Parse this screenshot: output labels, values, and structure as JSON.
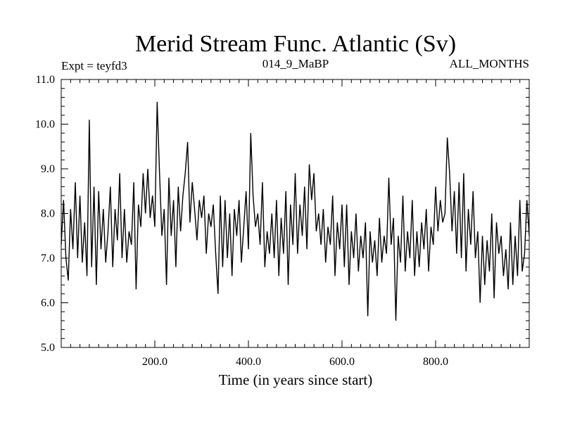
{
  "chart_data": {
    "type": "line",
    "title": "Merid Stream Func. Atlantic (Sv)",
    "subtitle_left": "Expt = teyfd3",
    "subtitle_center": "014_9_MaBP",
    "subtitle_right": "ALL_MONTHS",
    "xlabel": "Time (in years since start)",
    "ylabel": "",
    "xlim": [
      0,
      1000
    ],
    "ylim": [
      5.0,
      11.0
    ],
    "x_ticks": [
      200,
      400,
      600,
      800
    ],
    "x_tick_labels": [
      "200.0",
      "400.0",
      "600.0",
      "800.0"
    ],
    "y_ticks": [
      5,
      6,
      7,
      8,
      9,
      10,
      11
    ],
    "y_tick_labels": [
      "5.0",
      "6.0",
      "7.0",
      "8.0",
      "9.0",
      "10.0",
      "11.0"
    ],
    "grid": false,
    "series": [
      {
        "name": "Merid Stream Func. Atlantic",
        "x": [
          0,
          5,
          10,
          15,
          20,
          25,
          30,
          35,
          40,
          45,
          50,
          55,
          60,
          65,
          70,
          75,
          80,
          85,
          90,
          95,
          100,
          105,
          110,
          115,
          120,
          125,
          130,
          135,
          140,
          145,
          150,
          155,
          160,
          165,
          170,
          175,
          180,
          185,
          190,
          195,
          200,
          205,
          210,
          215,
          220,
          225,
          230,
          235,
          240,
          245,
          250,
          255,
          260,
          265,
          270,
          275,
          280,
          285,
          290,
          295,
          300,
          305,
          310,
          315,
          320,
          325,
          330,
          335,
          340,
          345,
          350,
          355,
          360,
          365,
          370,
          375,
          380,
          385,
          390,
          395,
          400,
          405,
          410,
          415,
          420,
          425,
          430,
          435,
          440,
          445,
          450,
          455,
          460,
          465,
          470,
          475,
          480,
          485,
          490,
          495,
          500,
          505,
          510,
          515,
          520,
          525,
          530,
          535,
          540,
          545,
          550,
          555,
          560,
          565,
          570,
          575,
          580,
          585,
          590,
          595,
          600,
          605,
          610,
          615,
          620,
          625,
          630,
          635,
          640,
          645,
          650,
          655,
          660,
          665,
          670,
          675,
          680,
          685,
          690,
          695,
          700,
          705,
          710,
          715,
          720,
          725,
          730,
          735,
          740,
          745,
          750,
          755,
          760,
          765,
          770,
          775,
          780,
          785,
          790,
          795,
          800,
          805,
          810,
          815,
          820,
          825,
          830,
          835,
          840,
          845,
          850,
          855,
          860,
          865,
          870,
          875,
          880,
          885,
          890,
          895,
          900,
          905,
          910,
          915,
          920,
          925,
          930,
          935,
          940,
          945,
          950,
          955,
          960,
          965,
          970,
          975,
          980,
          985,
          990,
          995,
          1000
        ],
        "values": [
          7.3,
          8.3,
          7.0,
          6.5,
          8.1,
          7.2,
          8.7,
          7.0,
          8.4,
          6.9,
          7.8,
          6.6,
          10.1,
          6.8,
          8.6,
          6.4,
          8.5,
          7.2,
          8.1,
          6.9,
          7.6,
          8.6,
          6.8,
          8.1,
          7.4,
          8.9,
          7.0,
          8.1,
          6.9,
          7.6,
          7.3,
          8.7,
          6.3,
          8.2,
          7.7,
          8.9,
          8.0,
          9.0,
          7.9,
          8.4,
          7.7,
          10.5,
          8.9,
          7.5,
          8.1,
          6.4,
          8.8,
          7.5,
          8.3,
          6.8,
          8.6,
          7.6,
          8.4,
          8.9,
          9.6,
          7.8,
          8.7,
          8.1,
          7.4,
          8.3,
          7.9,
          8.4,
          7.1,
          8.0,
          7.7,
          8.2,
          7.1,
          6.2,
          8.4,
          6.8,
          8.3,
          7.0,
          8.0,
          6.6,
          8.1,
          7.5,
          8.3,
          6.9,
          7.7,
          8.5,
          7.2,
          9.8,
          8.4,
          7.7,
          8.0,
          7.3,
          8.7,
          6.8,
          7.6,
          7.1,
          8.0,
          7.0,
          8.3,
          6.6,
          7.9,
          7.1,
          8.5,
          6.4,
          8.2,
          7.3,
          8.9,
          7.1,
          8.2,
          7.5,
          8.6,
          7.2,
          9.1,
          8.3,
          8.9,
          7.6,
          8.0,
          7.3,
          8.1,
          6.9,
          7.7,
          7.3,
          8.4,
          6.6,
          7.8,
          7.2,
          8.2,
          6.8,
          8.2,
          6.4,
          7.6,
          7.0,
          8.0,
          6.7,
          7.5,
          7.0,
          7.8,
          5.7,
          7.6,
          6.9,
          7.4,
          6.6,
          7.9,
          6.9,
          7.5,
          7.1,
          8.8,
          7.3,
          7.9,
          5.6,
          7.5,
          6.9,
          8.4,
          6.7,
          7.6,
          7.0,
          8.3,
          6.6,
          7.6,
          6.8,
          7.8,
          7.2,
          8.1,
          6.7,
          7.7,
          7.3,
          8.6,
          7.6,
          8.3,
          7.8,
          8.0,
          9.7,
          8.9,
          7.6,
          8.5,
          7.1,
          8.7,
          7.0,
          8.9,
          6.7,
          8.1,
          7.3,
          8.5,
          7.0,
          7.6,
          6.0,
          7.5,
          6.4,
          7.4,
          6.7,
          8.0,
          6.1,
          7.8,
          7.1,
          7.5,
          6.6,
          7.2,
          6.3,
          7.8,
          6.4,
          7.5,
          6.6,
          8.3,
          6.7,
          7.1,
          8.3,
          7.5
        ]
      }
    ]
  }
}
